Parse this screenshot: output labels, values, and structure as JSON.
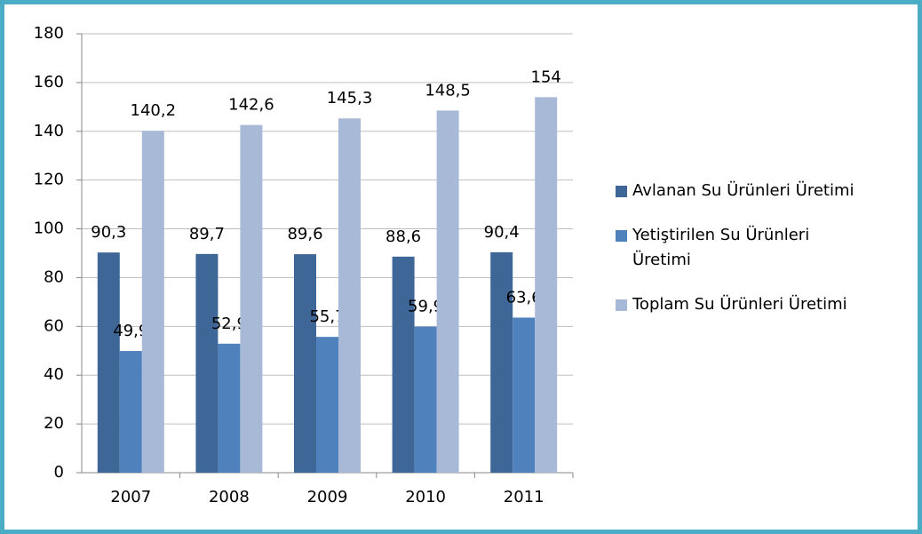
{
  "chart_data": {
    "type": "bar",
    "categories": [
      "2007",
      "2008",
      "2009",
      "2010",
      "2011"
    ],
    "series": [
      {
        "name": "Avlanan Su Ürünleri Üretimi",
        "color": "#3e6797",
        "values": [
          90.3,
          89.7,
          89.6,
          88.6,
          90.4
        ],
        "value_labels": [
          "90,3",
          "89,7",
          "89,6",
          "88,6",
          "90,4"
        ]
      },
      {
        "name": "Yetiştirilen Su Ürünleri Üretimi",
        "color": "#4f81bd",
        "values": [
          49.9,
          52.9,
          55.7,
          59.9,
          63.6
        ],
        "value_labels": [
          "49,9",
          "52,9",
          "55,7",
          "59,9",
          "63,6"
        ]
      },
      {
        "name": "Toplam Su Ürünleri Üretimi",
        "color": "#a8b9d8",
        "values": [
          140.2,
          142.6,
          145.3,
          148.5,
          154
        ],
        "value_labels": [
          "140,2",
          "142,6",
          "145,3",
          "148,5",
          "154"
        ]
      }
    ],
    "ylim": [
      0,
      180
    ],
    "yticks": [
      0,
      20,
      40,
      60,
      80,
      100,
      120,
      140,
      160,
      180
    ],
    "grid": true,
    "legend": "right"
  }
}
